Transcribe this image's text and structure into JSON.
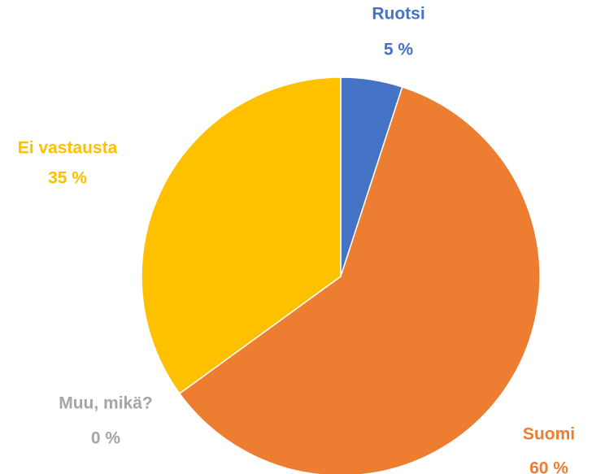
{
  "chart_data": {
    "type": "pie",
    "categories": [
      "Ruotsi",
      "Suomi",
      "Muu, mikä?",
      "Ei vastausta"
    ],
    "values": [
      5,
      60,
      0,
      35
    ],
    "value_labels": [
      "5 %",
      "60 %",
      "0 %",
      "35 %"
    ],
    "colors": [
      "#4472c4",
      "#ed7d31",
      "#a5a5a5",
      "#ffc000"
    ]
  }
}
